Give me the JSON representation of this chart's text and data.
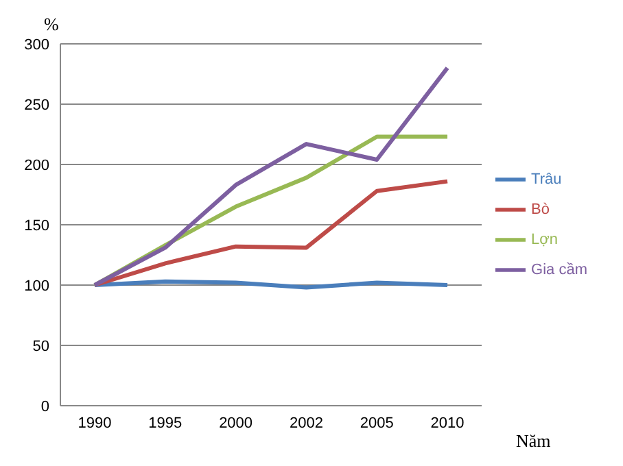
{
  "chart_data": {
    "type": "line",
    "xlabel": "Năm",
    "ylabel": "%",
    "categories": [
      "1990",
      "1995",
      "2000",
      "2002",
      "2005",
      "2010"
    ],
    "series": [
      {
        "name": "Trâu",
        "color": "#4a7ebb",
        "values": [
          100,
          103,
          102,
          98,
          102,
          100
        ]
      },
      {
        "name": "Bò",
        "color": "#be4b48",
        "values": [
          100,
          118,
          132,
          131,
          178,
          186
        ]
      },
      {
        "name": "Lợn",
        "color": "#98b954",
        "values": [
          100,
          133,
          165,
          189,
          223,
          223
        ]
      },
      {
        "name": "Gia cầm",
        "color": "#7d5fa0",
        "values": [
          100,
          131,
          183,
          217,
          204,
          280
        ]
      }
    ],
    "ylim": [
      0,
      300
    ],
    "yticks": [
      0,
      50,
      100,
      150,
      200,
      250,
      300
    ],
    "grid": "y",
    "legend": "right",
    "marker": "none",
    "line_style": "solid"
  }
}
